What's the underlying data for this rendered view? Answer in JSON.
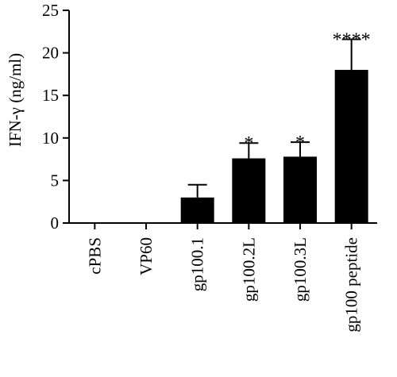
{
  "chart_data": {
    "type": "bar",
    "ylabel": "IFN-γ (ng/ml)",
    "ylim": [
      0,
      25
    ],
    "yticks": [
      0,
      5,
      10,
      15,
      20,
      25
    ],
    "grid": false,
    "categories": [
      "cPBS",
      "VP60",
      "gp100.1",
      "gp100.2L",
      "gp100.3L",
      "gp100 peptide"
    ],
    "values": [
      0,
      0,
      3.0,
      7.6,
      7.8,
      18.0
    ],
    "errors": [
      0,
      0,
      1.5,
      1.8,
      1.7,
      3.6
    ],
    "significance": [
      "",
      "",
      "",
      "*",
      "*",
      "****"
    ],
    "bar_color": "#000000"
  }
}
